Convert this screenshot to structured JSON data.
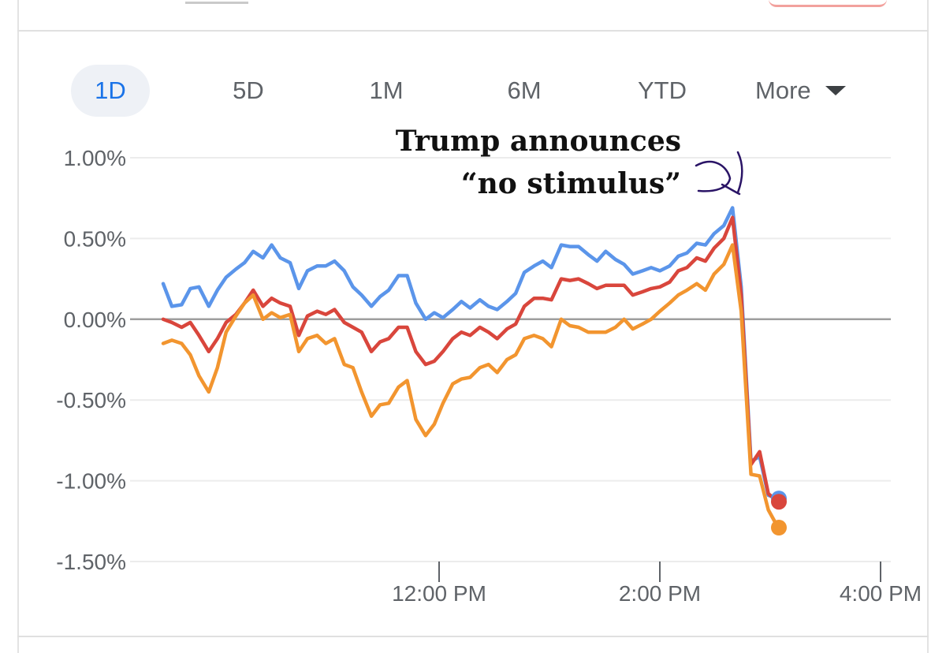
{
  "range_tabs": {
    "items": [
      "1D",
      "5D",
      "1M",
      "6M",
      "YTD"
    ],
    "active": "1D",
    "more_label": "More",
    "more_icon": "caret-down-icon"
  },
  "annotation": {
    "line1": "Trump announces",
    "line2": "“no stimulus”",
    "pen_color": "#2a1466"
  },
  "chart_data": {
    "type": "line",
    "title": "",
    "xlabel": "",
    "ylabel": "",
    "x_range": [
      9.5,
      16.0
    ],
    "ylim": [
      -1.5,
      1.0
    ],
    "yticks": [
      1.0,
      0.5,
      0.0,
      -0.5,
      -1.0,
      -1.5
    ],
    "ytick_labels": [
      "1.00%",
      "0.50%",
      "0.00%",
      "-0.50%",
      "-1.00%",
      "-1.50%"
    ],
    "xticks": [
      12,
      14,
      16
    ],
    "xtick_labels": [
      "12:00 PM",
      "2:00 PM",
      "4:00 PM"
    ],
    "baseline": 0.0,
    "x": [
      9.5,
      9.58,
      9.67,
      9.75,
      9.83,
      9.92,
      10.0,
      10.08,
      10.17,
      10.25,
      10.33,
      10.42,
      10.5,
      10.58,
      10.67,
      10.75,
      10.83,
      10.92,
      11.0,
      11.08,
      11.17,
      11.25,
      11.33,
      11.42,
      11.5,
      11.58,
      11.67,
      11.75,
      11.83,
      11.92,
      12.0,
      12.08,
      12.17,
      12.25,
      12.33,
      12.42,
      12.5,
      12.58,
      12.67,
      12.75,
      12.83,
      12.92,
      13.0,
      13.08,
      13.17,
      13.25,
      13.33,
      13.42,
      13.5,
      13.58,
      13.67,
      13.75,
      13.83,
      13.92,
      14.0,
      14.08,
      14.17,
      14.25,
      14.33,
      14.42,
      14.5,
      14.58,
      14.67,
      14.75,
      14.83,
      14.92,
      15.0,
      15.08,
      15.17
    ],
    "series": [
      {
        "name": "Blue index",
        "color": "#5b95ea",
        "last_value": -1.11,
        "values": [
          0.22,
          0.08,
          0.09,
          0.19,
          0.2,
          0.08,
          0.18,
          0.26,
          0.31,
          0.35,
          0.42,
          0.38,
          0.46,
          0.38,
          0.35,
          0.19,
          0.3,
          0.33,
          0.33,
          0.36,
          0.3,
          0.2,
          0.15,
          0.08,
          0.14,
          0.18,
          0.27,
          0.27,
          0.1,
          0.0,
          0.04,
          0.01,
          0.06,
          0.11,
          0.07,
          0.12,
          0.08,
          0.06,
          0.11,
          0.16,
          0.29,
          0.33,
          0.36,
          0.32,
          0.46,
          0.45,
          0.45,
          0.4,
          0.36,
          0.42,
          0.37,
          0.34,
          0.28,
          0.3,
          0.32,
          0.3,
          0.33,
          0.39,
          0.41,
          0.47,
          0.46,
          0.53,
          0.58,
          0.69,
          0.2,
          -0.88,
          -0.85,
          -1.09,
          -1.11
        ]
      },
      {
        "name": "Red index",
        "color": "#d9463c",
        "last_value": -1.13,
        "values": [
          0.0,
          -0.02,
          -0.05,
          -0.02,
          -0.1,
          -0.2,
          -0.12,
          -0.02,
          0.03,
          0.1,
          0.18,
          0.08,
          0.13,
          0.1,
          0.08,
          -0.1,
          0.02,
          0.05,
          0.03,
          0.06,
          -0.02,
          -0.05,
          -0.08,
          -0.2,
          -0.14,
          -0.12,
          -0.05,
          -0.05,
          -0.2,
          -0.28,
          -0.26,
          -0.2,
          -0.12,
          -0.08,
          -0.1,
          -0.05,
          -0.08,
          -0.12,
          -0.06,
          -0.03,
          0.08,
          0.13,
          0.13,
          0.12,
          0.25,
          0.24,
          0.25,
          0.22,
          0.19,
          0.21,
          0.21,
          0.21,
          0.15,
          0.17,
          0.19,
          0.2,
          0.23,
          0.3,
          0.32,
          0.38,
          0.36,
          0.44,
          0.5,
          0.63,
          0.15,
          -0.9,
          -0.82,
          -1.08,
          -1.13
        ]
      },
      {
        "name": "Orange index",
        "color": "#f2952f",
        "last_value": -1.29,
        "values": [
          -0.15,
          -0.13,
          -0.15,
          -0.22,
          -0.35,
          -0.45,
          -0.3,
          -0.08,
          0.02,
          0.1,
          0.15,
          0.0,
          0.04,
          0.01,
          0.03,
          -0.2,
          -0.12,
          -0.1,
          -0.15,
          -0.12,
          -0.28,
          -0.3,
          -0.45,
          -0.6,
          -0.53,
          -0.52,
          -0.42,
          -0.38,
          -0.62,
          -0.72,
          -0.65,
          -0.52,
          -0.4,
          -0.37,
          -0.36,
          -0.3,
          -0.28,
          -0.33,
          -0.25,
          -0.22,
          -0.12,
          -0.1,
          -0.12,
          -0.17,
          0.0,
          -0.04,
          -0.05,
          -0.08,
          -0.08,
          -0.08,
          -0.05,
          0.0,
          -0.06,
          -0.03,
          0.0,
          0.05,
          0.1,
          0.15,
          0.18,
          0.22,
          0.18,
          0.28,
          0.34,
          0.46,
          0.05,
          -0.96,
          -0.97,
          -1.18,
          -1.29
        ]
      }
    ]
  }
}
